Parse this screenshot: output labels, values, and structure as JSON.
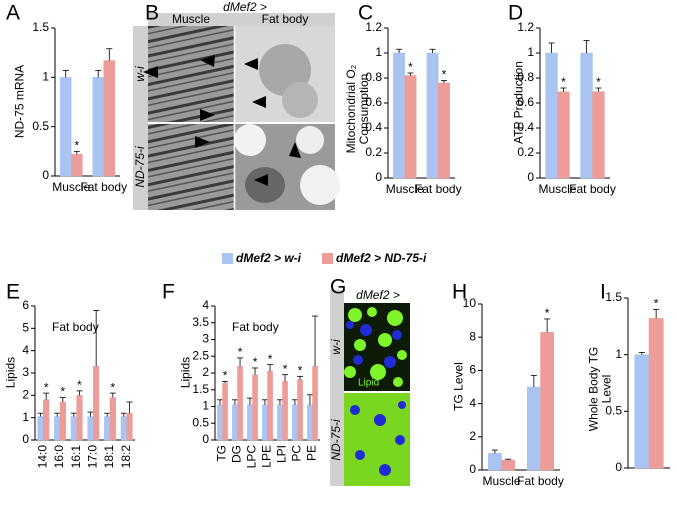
{
  "legend": {
    "items": [
      {
        "name": "dMef2 > w-i",
        "color": "#a9c4f0"
      },
      {
        "name": "dMef2 > ND-75-i",
        "color": "#ec9d99"
      }
    ]
  },
  "chart_data": [
    {
      "type": "bar",
      "letter": "A",
      "ylabel": "ND-75 mRNA",
      "categories": [
        "Muscle",
        "Fat body"
      ],
      "series": [
        {
          "values": [
            1,
            1
          ],
          "errors": [
            0.07,
            0.07
          ]
        },
        {
          "values": [
            0.22,
            1.17
          ],
          "errors": [
            0.03,
            0.12
          ],
          "significance": [
            "*",
            null
          ]
        }
      ],
      "ylim": [
        0,
        1.5
      ],
      "yticks": [
        0,
        0.5,
        1,
        1.5
      ]
    },
    {
      "type": "bar",
      "letter": "C",
      "ylabel": "Mitochondrial O₂ Consumption",
      "categories": [
        "Muscle",
        "Fat body"
      ],
      "series": [
        {
          "values": [
            1,
            1
          ],
          "errors": [
            0.03,
            0.03
          ]
        },
        {
          "values": [
            0.82,
            0.76
          ],
          "errors": [
            0.02,
            0.02
          ],
          "significance": [
            "*",
            "*"
          ]
        }
      ],
      "ylim": [
        0,
        1.2
      ],
      "yticks": [
        0,
        0.2,
        0.4,
        0.6,
        0.8,
        1,
        1.2
      ]
    },
    {
      "type": "bar",
      "letter": "D",
      "ylabel": "ATP Production",
      "categories": [
        "Muscle",
        "Fat body"
      ],
      "series": [
        {
          "values": [
            1,
            1
          ],
          "errors": [
            0.08,
            0.1
          ]
        },
        {
          "values": [
            0.69,
            0.69
          ],
          "errors": [
            0.03,
            0.03
          ],
          "significance": [
            "*",
            "*"
          ]
        }
      ],
      "ylim": [
        0,
        1.2
      ],
      "yticks": [
        0,
        0.2,
        0.4,
        0.6,
        0.8,
        1,
        1.2
      ]
    },
    {
      "type": "bar",
      "letter": "E",
      "ylabel": "Lipids",
      "annotation": "Fat body",
      "categories": [
        "14:0",
        "16:0",
        "16:1",
        "17:0",
        "18:1",
        "18:2"
      ],
      "series": [
        {
          "values": [
            1.05,
            1.05,
            1.05,
            1.05,
            1.05,
            1.05
          ],
          "errors": [
            0.15,
            0.15,
            0.15,
            0.2,
            0.15,
            0.15
          ]
        },
        {
          "values": [
            1.8,
            1.7,
            2.0,
            3.3,
            1.9,
            1.2
          ],
          "errors": [
            0.3,
            0.2,
            0.2,
            2.5,
            0.2,
            0.5
          ],
          "significance": [
            "*",
            "*",
            "*",
            null,
            "*",
            null
          ]
        }
      ],
      "ylim": [
        0,
        6
      ],
      "yticks": [
        0,
        1,
        2,
        3,
        4,
        5,
        6
      ]
    },
    {
      "type": "bar",
      "letter": "F",
      "ylabel": "Lipids",
      "annotation": "Fat body",
      "categories": [
        "TG",
        "DG",
        "LPC",
        "LPE",
        "LPI",
        "PC",
        "PE"
      ],
      "series": [
        {
          "values": [
            1.05,
            1.05,
            1.05,
            1.05,
            1.05,
            1.05,
            1.05
          ],
          "errors": [
            0.15,
            0.15,
            0.2,
            0.15,
            0.15,
            0.15,
            0.3
          ]
        },
        {
          "values": [
            1.7,
            2.2,
            1.95,
            2.05,
            1.75,
            1.8,
            2.2
          ],
          "errors": [
            0.05,
            0.25,
            0.2,
            0.2,
            0.2,
            0.1,
            1.5
          ],
          "significance": [
            "*",
            "*",
            "*",
            "*",
            "*",
            "*",
            null
          ]
        }
      ],
      "ylim": [
        0,
        4
      ],
      "yticks": [
        0,
        0.5,
        1,
        1.5,
        2,
        2.5,
        3,
        3.5,
        4
      ]
    },
    {
      "type": "bar",
      "letter": "H",
      "ylabel": "TG Level",
      "categories": [
        "Muscle",
        "Fat body"
      ],
      "series": [
        {
          "values": [
            1,
            5
          ],
          "errors": [
            0.2,
            0.7
          ]
        },
        {
          "values": [
            0.6,
            8.3
          ],
          "errors": [
            0.05,
            0.8
          ],
          "significance": [
            null,
            "*"
          ]
        }
      ],
      "ylim": [
        0,
        10
      ],
      "yticks": [
        0,
        2,
        4,
        6,
        8,
        10
      ]
    },
    {
      "type": "bar",
      "letter": "I",
      "ylabel": "Whole Body TG Level",
      "categories": [
        null
      ],
      "series": [
        {
          "values": [
            1
          ],
          "errors": [
            0.02
          ]
        },
        {
          "values": [
            1.32
          ],
          "errors": [
            0.08
          ],
          "significance": [
            "*"
          ]
        }
      ],
      "ylim": [
        0,
        1.5
      ],
      "yticks": [
        0,
        0.5,
        1,
        1.5
      ]
    }
  ],
  "panel_b": {
    "letter": "B",
    "title": "dMef2 >",
    "columns": [
      "Muscle",
      "Fat body"
    ],
    "rows": [
      "w-i",
      "ND-75-i"
    ]
  },
  "panel_g": {
    "letter": "G",
    "title": "dMef2 >",
    "rows": [
      "w-i",
      "ND-75-i"
    ],
    "stain": "Lipid"
  }
}
